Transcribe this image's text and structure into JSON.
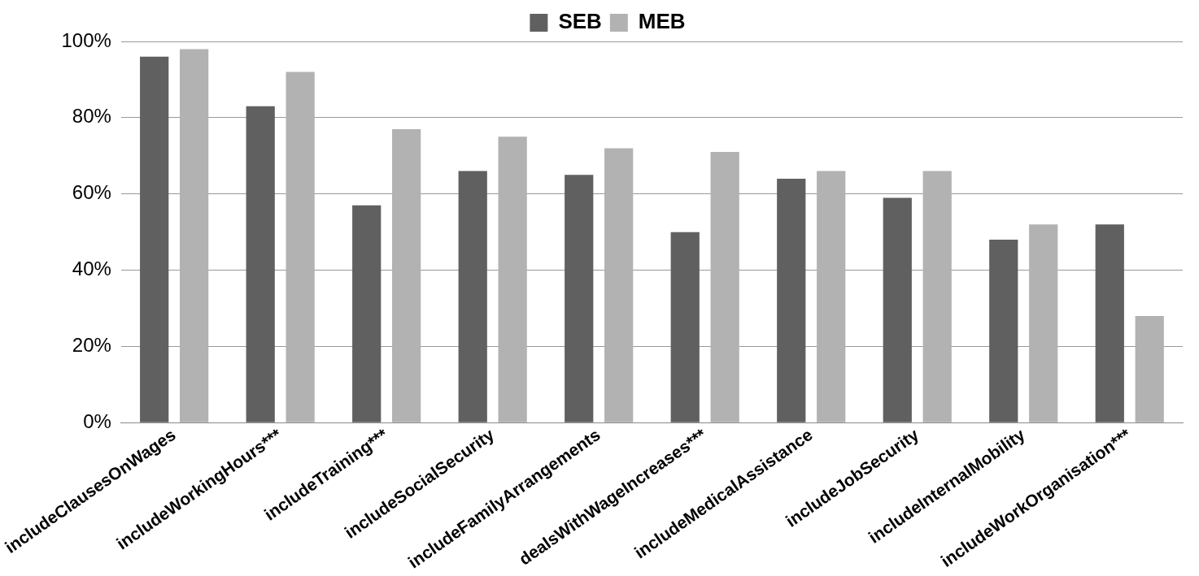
{
  "chart_data": {
    "type": "bar",
    "categories": [
      "includeClausesOnWages",
      "includeWorkingHours***",
      "includeTraining***",
      "includeSocialSecurity",
      "includeFamilyArrangements",
      "dealsWithWageIncreases***",
      "includeMedicalAssistance",
      "includeJobSecurity",
      "includeInternalMobility",
      "includeWorkOrganisation***"
    ],
    "series": [
      {
        "name": "SEB",
        "color": "#606060",
        "values": [
          96,
          83,
          57,
          66,
          65,
          50,
          64,
          59,
          48,
          52
        ]
      },
      {
        "name": "MEB",
        "color": "#b2b2b2",
        "values": [
          98,
          92,
          77,
          75,
          72,
          71,
          66,
          66,
          52,
          28
        ]
      }
    ],
    "ylim": [
      0,
      100
    ],
    "yticks": [
      {
        "value": 0,
        "label": "0%"
      },
      {
        "value": 20,
        "label": "20%"
      },
      {
        "value": 40,
        "label": "40%"
      },
      {
        "value": 60,
        "label": "60%"
      },
      {
        "value": 80,
        "label": "80%"
      },
      {
        "value": 100,
        "label": "100%"
      }
    ],
    "grid": "y",
    "legend": "top"
  }
}
